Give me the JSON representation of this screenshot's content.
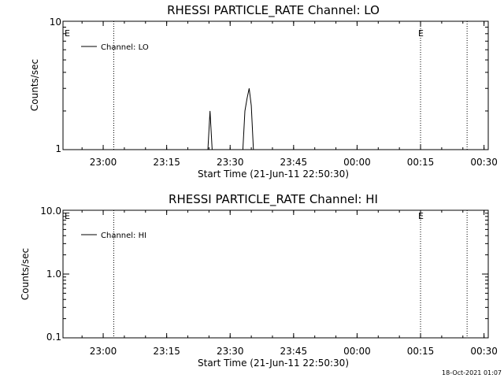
{
  "timestamp": "18-Oct-2021 01:07",
  "chart_data": [
    {
      "type": "line",
      "title": "RHESSI PARTICLE_RATE Channel: LO",
      "xlabel": "Start Time (21-Jun-11 22:50:30)",
      "ylabel": "Counts/sec",
      "yscale": "log",
      "ylim": [
        1,
        10
      ],
      "xlim": [
        "22:50:30",
        "00:31:00"
      ],
      "x_ticks": [
        "23:00",
        "23:15",
        "23:30",
        "23:45",
        "00:00",
        "00:15",
        "00:30"
      ],
      "y_ticks": [
        "1",
        "10"
      ],
      "legend": {
        "label": "Channel: LO",
        "position": "top-left"
      },
      "markers": [
        {
          "label": "E",
          "x": "22:50:30"
        },
        {
          "label": "E",
          "x": "00:15:00"
        }
      ],
      "vlines": [
        "23:02:30",
        "00:15:00",
        "00:26:00"
      ],
      "series": [
        {
          "name": "Channel: LO",
          "x": [
            "23:24:45",
            "23:25:15",
            "23:25:45",
            "23:26:00",
            "23:33:00",
            "23:33:30",
            "23:34:00",
            "23:34:30",
            "23:35:00",
            "23:35:30"
          ],
          "y": [
            1,
            2.0,
            1,
            1,
            1,
            2.0,
            2.5,
            3.0,
            2.2,
            1
          ]
        }
      ]
    },
    {
      "type": "line",
      "title": "RHESSI PARTICLE_RATE Channel: HI",
      "xlabel": "Start Time (21-Jun-11 22:50:30)",
      "ylabel": "Counts/sec",
      "yscale": "log",
      "ylim": [
        0.1,
        10
      ],
      "xlim": [
        "22:50:30",
        "00:31:00"
      ],
      "x_ticks": [
        "23:00",
        "23:15",
        "23:30",
        "23:45",
        "00:00",
        "00:15",
        "00:30"
      ],
      "y_ticks": [
        "0.1",
        "1.0",
        "10.0"
      ],
      "legend": {
        "label": "Channel: HI",
        "position": "top-left"
      },
      "markers": [
        {
          "label": "E",
          "x": "22:50:30"
        },
        {
          "label": "E",
          "x": "00:15:00"
        }
      ],
      "vlines": [
        "23:02:30",
        "00:15:00",
        "00:26:00"
      ],
      "series": [
        {
          "name": "Channel: HI",
          "x": [],
          "y": []
        }
      ]
    }
  ]
}
